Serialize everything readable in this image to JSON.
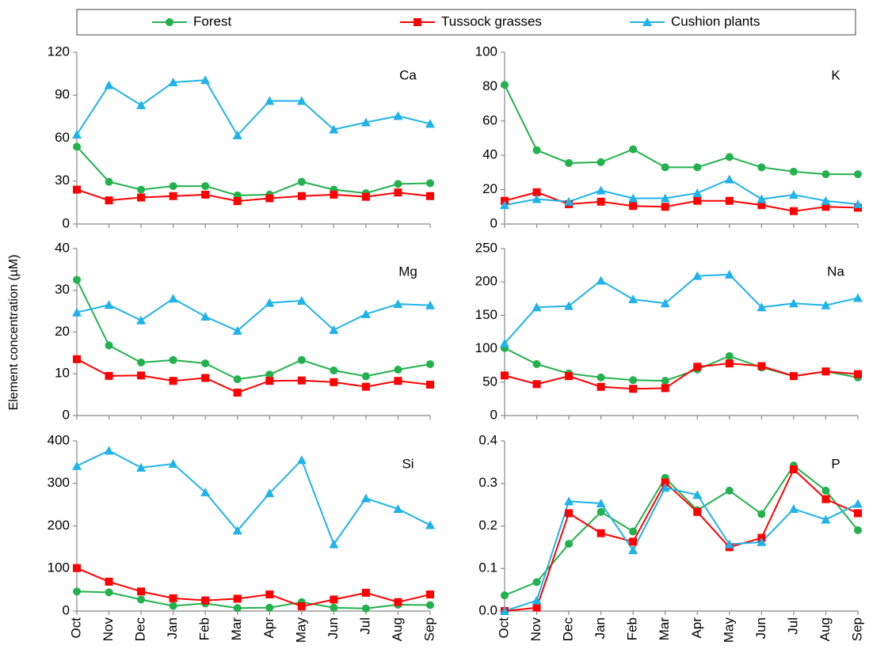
{
  "chart_data": [
    {
      "type": "line",
      "label": "Ca",
      "ylabel": "Element concentration (µM)",
      "ylim": [
        0,
        120
      ],
      "yticks": [
        0,
        30,
        60,
        90,
        120
      ],
      "series": [
        {
          "name": "Forest",
          "color": "#22b14c",
          "marker": "circle",
          "values": [
            54,
            29.5,
            24,
            26.5,
            26.5,
            20,
            20.5,
            29.5,
            24,
            21.5,
            28,
            28.5
          ]
        },
        {
          "name": "Tussock grasses",
          "color": "#ff0000",
          "marker": "square",
          "values": [
            24,
            16.5,
            18.5,
            19.5,
            20.5,
            16,
            18,
            19.5,
            20.5,
            19,
            22,
            19.5
          ]
        },
        {
          "name": "Cushion plants",
          "color": "#1fb3e8",
          "marker": "triangle",
          "values": [
            62.5,
            97,
            83,
            99,
            100.5,
            62,
            86,
            86,
            66,
            71,
            75.5,
            70
          ]
        }
      ]
    },
    {
      "type": "line",
      "label": "K",
      "ylim": [
        0,
        100
      ],
      "yticks": [
        0,
        20,
        40,
        60,
        80,
        100
      ],
      "series": [
        {
          "color": "#22b14c",
          "marker": "circle",
          "values": [
            81,
            43,
            35.5,
            36,
            43.5,
            33,
            33,
            39,
            33,
            30.5,
            29,
            29
          ]
        },
        {
          "color": "#ff0000",
          "marker": "square",
          "values": [
            13.5,
            18.5,
            11.5,
            13,
            10.5,
            10,
            13.5,
            13.5,
            11,
            7.5,
            10,
            9.5
          ]
        },
        {
          "color": "#1fb3e8",
          "marker": "triangle",
          "values": [
            11,
            14.5,
            13,
            19.5,
            15,
            15,
            18,
            26,
            14.5,
            17,
            13.5,
            11.5
          ]
        }
      ]
    },
    {
      "type": "line",
      "label": "Mg",
      "ylim": [
        0,
        40
      ],
      "yticks": [
        0,
        10,
        20,
        30,
        40
      ],
      "series": [
        {
          "color": "#22b14c",
          "marker": "circle",
          "values": [
            32.5,
            16.8,
            12.7,
            13.3,
            12.5,
            8.7,
            9.8,
            13.3,
            10.8,
            9.4,
            11,
            12.3
          ]
        },
        {
          "color": "#ff0000",
          "marker": "square",
          "values": [
            13.5,
            9.5,
            9.6,
            8.3,
            9,
            5.5,
            8.3,
            8.4,
            8,
            6.9,
            8.3,
            7.4
          ]
        },
        {
          "color": "#1fb3e8",
          "marker": "triangle",
          "values": [
            24.7,
            26.5,
            22.8,
            28,
            23.7,
            20.3,
            27,
            27.5,
            20.5,
            24.3,
            26.7,
            26.4
          ]
        }
      ]
    },
    {
      "type": "line",
      "label": "Na",
      "ylim": [
        0,
        250
      ],
      "yticks": [
        0,
        50,
        100,
        150,
        200,
        250
      ],
      "series": [
        {
          "color": "#22b14c",
          "marker": "circle",
          "values": [
            101,
            77,
            63,
            57,
            53,
            52,
            69,
            89,
            72,
            59,
            66,
            57
          ]
        },
        {
          "color": "#ff0000",
          "marker": "square",
          "values": [
            60,
            47,
            59,
            43,
            40,
            41,
            73,
            78,
            74,
            59,
            66,
            62
          ]
        },
        {
          "color": "#1fb3e8",
          "marker": "triangle",
          "values": [
            108,
            162,
            164,
            202,
            174,
            168,
            209,
            211,
            162,
            168,
            165,
            176
          ]
        }
      ]
    },
    {
      "type": "line",
      "label": "Si",
      "ylim": [
        0,
        400
      ],
      "yticks": [
        0,
        100,
        200,
        300,
        400
      ],
      "categories": [
        "Oct",
        "Nov",
        "Dec",
        "Jan",
        "Feb",
        "Mar",
        "Apr",
        "May",
        "Jun",
        "Jul",
        "Aug",
        "Sep"
      ],
      "series": [
        {
          "color": "#22b14c",
          "marker": "circle",
          "values": [
            46,
            44,
            27,
            12,
            18,
            7,
            8,
            21,
            8,
            6,
            15,
            14
          ]
        },
        {
          "color": "#ff0000",
          "marker": "square",
          "values": [
            101,
            69,
            46,
            30,
            25,
            29,
            39,
            11,
            27,
            43,
            21,
            39
          ]
        },
        {
          "color": "#1fb3e8",
          "marker": "triangle",
          "values": [
            341,
            377,
            337,
            346,
            279,
            189,
            277,
            355,
            157,
            265,
            240,
            202
          ]
        }
      ]
    },
    {
      "type": "line",
      "label": "P",
      "ylim": [
        0,
        0.4
      ],
      "yticks": [
        {
          "value": 0,
          "label": "0.0"
        },
        0.1,
        0.2,
        0.3,
        0.4
      ],
      "categories": [
        "Oct",
        "Nov",
        "Dec",
        "Jan",
        "Feb",
        "Mar",
        "Apr",
        "May",
        "Jun",
        "Jul",
        "Aug",
        "Sep"
      ],
      "series": [
        {
          "color": "#22b14c",
          "marker": "circle",
          "values": [
            0.037,
            0.068,
            0.158,
            0.233,
            0.187,
            0.313,
            0.237,
            0.283,
            0.228,
            0.342,
            0.283,
            0.19
          ]
        },
        {
          "color": "#ff0000",
          "marker": "square",
          "values": [
            0,
            0.008,
            0.23,
            0.183,
            0.163,
            0.302,
            0.233,
            0.15,
            0.172,
            0.333,
            0.263,
            0.23
          ]
        },
        {
          "color": "#1fb3e8",
          "marker": "triangle",
          "values": [
            0,
            0.025,
            0.258,
            0.253,
            0.143,
            0.29,
            0.273,
            0.157,
            0.162,
            0.24,
            0.215,
            0.252
          ]
        }
      ]
    }
  ]
}
